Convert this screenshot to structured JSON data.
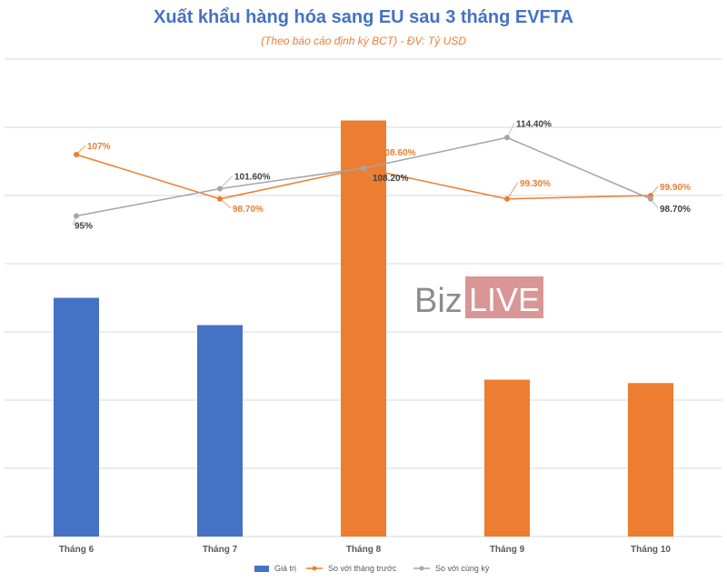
{
  "chart_data": {
    "type": "bar",
    "title": "Xuất khẩu hàng hóa sang EU sau 3 tháng EVFTA",
    "subtitle": "(Theo báo cáo định kỳ BCT)  - ĐV: Tỷ USD",
    "categories": [
      "Tháng 6",
      "Tháng 7",
      "Tháng 8",
      "Tháng 9",
      "Tháng 10"
    ],
    "ylim": [
      0,
      7
    ],
    "grid": true,
    "bar_series": {
      "name": "Giá trị",
      "values": [
        3.5,
        3.1,
        6.1,
        2.3,
        2.25
      ],
      "colors": [
        "#4472c4",
        "#4472c4",
        "#ed7d31",
        "#ed7d31",
        "#ed7d31"
      ]
    },
    "line_series": [
      {
        "name": "So với tháng trước",
        "color": "#ed7d31",
        "plot_values": [
          5.6,
          4.95,
          5.4,
          4.95,
          5.0
        ],
        "labels": [
          "107%",
          "98.70%",
          "108.60%",
          "99.30%",
          "99.90%"
        ]
      },
      {
        "name": "So với cùng kỳ",
        "color": "#a5a5a5",
        "plot_values": [
          4.7,
          5.1,
          5.4,
          5.85,
          4.95
        ],
        "labels": [
          "95%",
          "101.60%",
          "108.20%",
          "114.40%",
          "98.70%"
        ]
      }
    ],
    "legend_position": "bottom",
    "legend_colors": [
      "#4472c4",
      "#ed7d31",
      "#a5a5a5"
    ]
  },
  "watermark": {
    "part1": "Biz",
    "part2": "LIVE",
    "box_color": "#d99694"
  }
}
